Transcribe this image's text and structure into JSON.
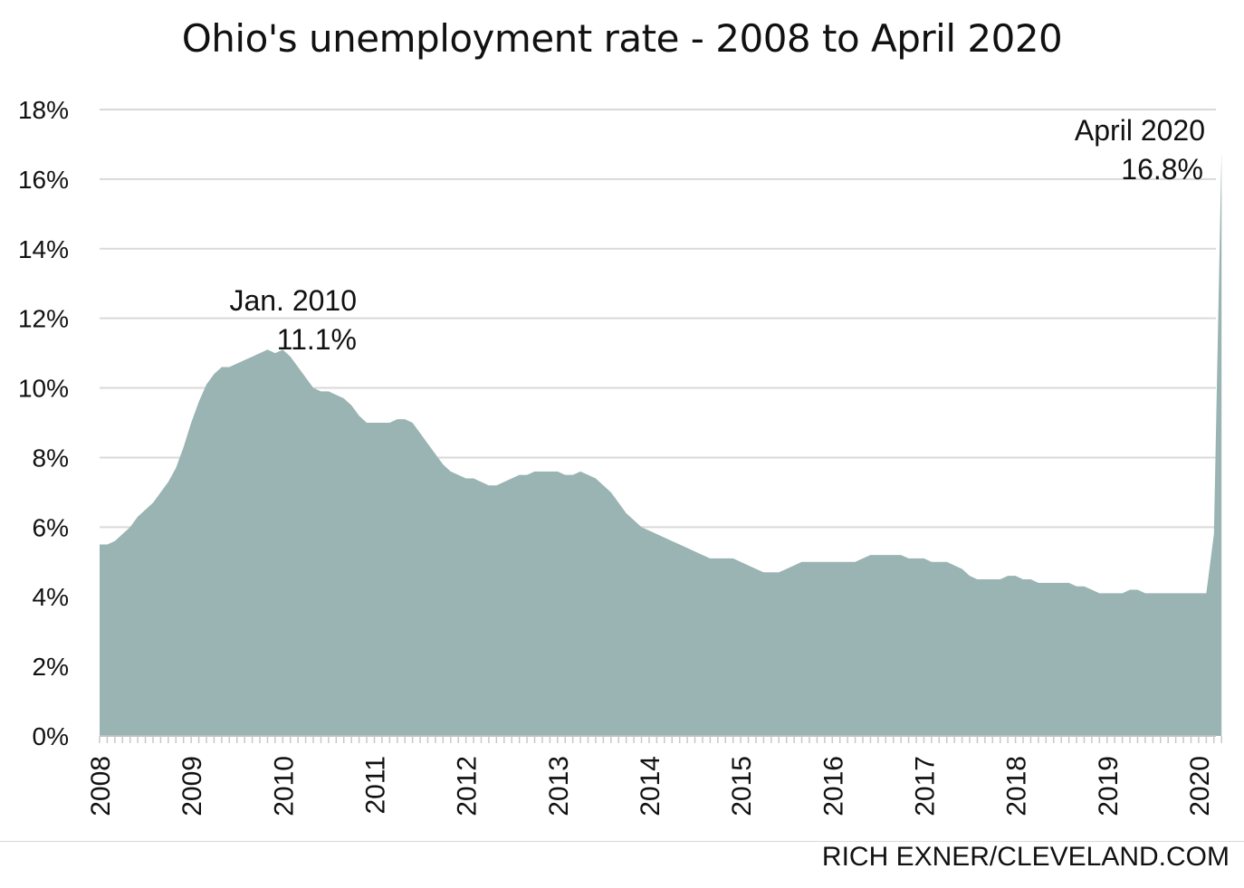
{
  "title": "Ohio's unemployment rate - 2008 to April 2020",
  "credit": "RICH EXNER/CLEVELAND.COM",
  "colors": {
    "area": "#99b4b2",
    "grid": "#d9d9d9",
    "text": "#111111"
  },
  "chart_data": {
    "type": "area",
    "title": "Ohio's unemployment rate - 2008 to April 2020",
    "xlabel": "",
    "ylabel": "",
    "ylim": [
      0,
      18
    ],
    "yticks": [
      0,
      2,
      4,
      6,
      8,
      10,
      12,
      14,
      16,
      18
    ],
    "ytick_labels": [
      "0%",
      "2%",
      "4%",
      "6%",
      "8%",
      "10%",
      "12%",
      "14%",
      "16%",
      "18%"
    ],
    "xtick_labels": [
      "2008",
      "2009",
      "2010",
      "2011",
      "2012",
      "2013",
      "2014",
      "2015",
      "2016",
      "2017",
      "2018",
      "2019",
      "2020"
    ],
    "grid": "horizontal",
    "series": [
      {
        "start": "2008-01",
        "frequency": "monthly",
        "values": [
          5.5,
          5.5,
          5.6,
          5.8,
          6.0,
          6.3,
          6.5,
          6.7,
          7.0,
          7.3,
          7.7,
          8.3,
          9.0,
          9.6,
          10.1,
          10.4,
          10.6,
          10.6,
          10.7,
          10.8,
          10.9,
          11.0,
          11.1,
          11.0,
          11.1,
          10.9,
          10.6,
          10.3,
          10.0,
          9.9,
          9.9,
          9.8,
          9.7,
          9.5,
          9.2,
          9.0,
          9.0,
          9.0,
          9.0,
          9.1,
          9.1,
          9.0,
          8.7,
          8.4,
          8.1,
          7.8,
          7.6,
          7.5,
          7.4,
          7.4,
          7.3,
          7.2,
          7.2,
          7.3,
          7.4,
          7.5,
          7.5,
          7.6,
          7.6,
          7.6,
          7.6,
          7.5,
          7.5,
          7.6,
          7.5,
          7.4,
          7.2,
          7.0,
          6.7,
          6.4,
          6.2,
          6.0,
          5.9,
          5.8,
          5.7,
          5.6,
          5.5,
          5.4,
          5.3,
          5.2,
          5.1,
          5.1,
          5.1,
          5.1,
          5.0,
          4.9,
          4.8,
          4.7,
          4.7,
          4.7,
          4.8,
          4.9,
          5.0,
          5.0,
          5.0,
          5.0,
          5.0,
          5.0,
          5.0,
          5.0,
          5.1,
          5.2,
          5.2,
          5.2,
          5.2,
          5.2,
          5.1,
          5.1,
          5.1,
          5.0,
          5.0,
          5.0,
          4.9,
          4.8,
          4.6,
          4.5,
          4.5,
          4.5,
          4.5,
          4.6,
          4.6,
          4.5,
          4.5,
          4.4,
          4.4,
          4.4,
          4.4,
          4.4,
          4.3,
          4.3,
          4.2,
          4.1,
          4.1,
          4.1,
          4.1,
          4.2,
          4.2,
          4.1,
          4.1,
          4.1,
          4.1,
          4.1,
          4.1,
          4.1,
          4.1,
          4.1,
          5.8,
          16.8
        ]
      }
    ],
    "annotations": [
      {
        "line1": "Jan. 2010",
        "line2": "11.1%",
        "index": 24,
        "value": 11.1
      },
      {
        "line1": "April 2020",
        "line2": "16.8%",
        "index": 147,
        "value": 16.8
      }
    ]
  }
}
